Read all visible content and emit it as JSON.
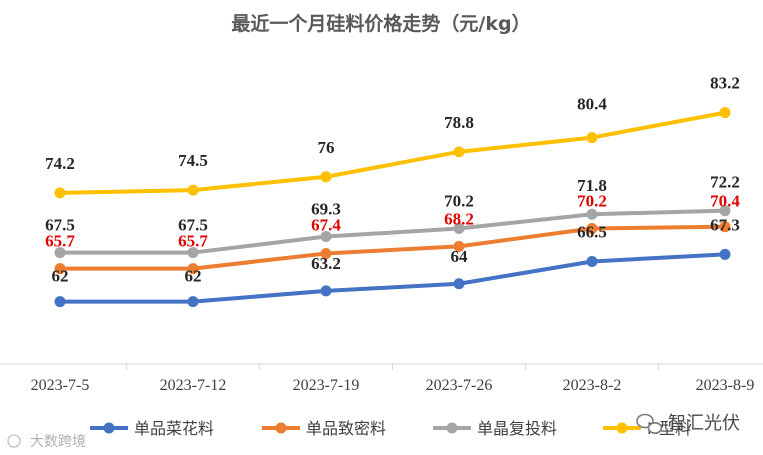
{
  "chart_data": {
    "type": "line",
    "title": "最近一个月硅料价格走势（元/kg）",
    "categories": [
      "2023-7-5",
      "2023-7-12",
      "2023-7-19",
      "2023-7-26",
      "2023-8-2",
      "2023-8-9"
    ],
    "ylim": [
      55,
      90
    ],
    "xlabel": "",
    "ylabel": "",
    "grid": false,
    "legend_position": "bottom",
    "series": [
      {
        "name": "单品菜花料",
        "color": "#4472C4",
        "values": [
          62,
          62,
          63.2,
          64,
          66.5,
          67.3
        ],
        "labels": [
          "62",
          "62",
          "63.2",
          "64",
          "66.5",
          "67.3"
        ],
        "label_color": "#262626"
      },
      {
        "name": "单品致密料",
        "color": "#ED7D31",
        "values": [
          65.7,
          65.7,
          67.4,
          68.2,
          70.2,
          70.4
        ],
        "labels": [
          "65.7",
          "65.7",
          "67.4",
          "68.2",
          "70.2",
          "70.4"
        ],
        "label_color": "#E00000"
      },
      {
        "name": "单晶复投料",
        "color": "#A5A5A5",
        "values": [
          67.5,
          67.5,
          69.3,
          70.2,
          71.8,
          72.2
        ],
        "labels": [
          "67.5",
          "67.5",
          "69.3",
          "70.2",
          "71.8",
          "72.2"
        ],
        "label_color": "#262626"
      },
      {
        "name": "N型料",
        "color": "#FFC000",
        "values": [
          74.2,
          74.5,
          76,
          78.8,
          80.4,
          83.2
        ],
        "labels": [
          "74.2",
          "74.5",
          "76",
          "78.8",
          "80.4",
          "83.2"
        ],
        "label_color": "#262626"
      }
    ]
  },
  "watermarks": {
    "top_right": "智汇光伏",
    "bottom_left": "大数跨境"
  }
}
